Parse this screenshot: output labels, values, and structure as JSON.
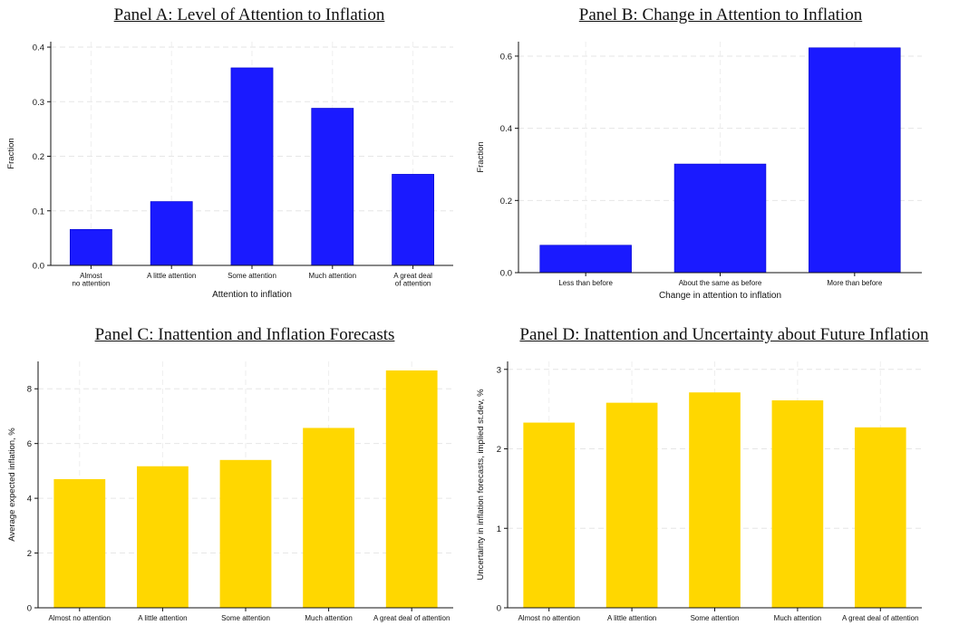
{
  "chart_data": [
    {
      "type": "bar",
      "title": "Panel A: Level of Attention to Inflation",
      "categories": [
        [
          "Almost",
          "no attention"
        ],
        [
          "A little attention"
        ],
        [
          "Some attention"
        ],
        [
          "Much attention"
        ],
        [
          "A great deal",
          "of attention"
        ]
      ],
      "values": [
        0.066,
        0.117,
        0.362,
        0.288,
        0.167
      ],
      "xlabel": "Attention to inflation",
      "ylabel": "Fraction",
      "ylim": [
        0,
        0.41
      ],
      "yticks": [
        0.0,
        0.1,
        0.2,
        0.3,
        0.4
      ],
      "ytick_labels": [
        "0.0",
        "0.1",
        "0.2",
        "0.3",
        "0.4"
      ],
      "grid": true,
      "color": "#1a1aff"
    },
    {
      "type": "bar",
      "title": "Panel B: Change in Attention to Inflation",
      "categories": [
        [
          "Less than before"
        ],
        [
          "About the same as before"
        ],
        [
          "More than before"
        ]
      ],
      "values": [
        0.076,
        0.301,
        0.623
      ],
      "xlabel": "Change in attention to inflation",
      "ylabel": "Fraction",
      "ylim": [
        0,
        0.64
      ],
      "yticks": [
        0.0,
        0.2,
        0.4,
        0.6
      ],
      "ytick_labels": [
        "0.0",
        "0.2",
        "0.4",
        "0.6"
      ],
      "grid": true,
      "color": "#1a1aff"
    },
    {
      "type": "bar",
      "title": "Panel C: Inattention and Inflation Forecasts",
      "categories": [
        [
          "Almost no attention"
        ],
        [
          "A little attention"
        ],
        [
          "Some attention"
        ],
        [
          "Much attention"
        ],
        [
          "A great deal of attention"
        ]
      ],
      "values": [
        4.7,
        5.17,
        5.4,
        6.57,
        8.67
      ],
      "xlabel": "",
      "ylabel": "Average expected inflation, %",
      "ylim": [
        0,
        9
      ],
      "yticks": [
        0,
        2,
        4,
        6,
        8
      ],
      "ytick_labels": [
        "0",
        "2",
        "4",
        "6",
        "8"
      ],
      "grid": true,
      "color": "#ffd700"
    },
    {
      "type": "bar",
      "title": "Panel D: Inattention and Uncertainty about Future Inflation",
      "categories": [
        [
          "Almost no attention"
        ],
        [
          "A little attention"
        ],
        [
          "Some attention"
        ],
        [
          "Much attention"
        ],
        [
          "A great deal of attention"
        ]
      ],
      "values": [
        2.33,
        2.58,
        2.71,
        2.61,
        2.27
      ],
      "xlabel": "",
      "ylabel": "Uncertainty in inflation forecasts, implied st.dev, %",
      "ylim": [
        0,
        3.1
      ],
      "yticks": [
        0,
        1,
        2,
        3
      ],
      "ytick_labels": [
        "0",
        "1",
        "2",
        "3"
      ],
      "grid": true,
      "color": "#ffd700"
    }
  ]
}
